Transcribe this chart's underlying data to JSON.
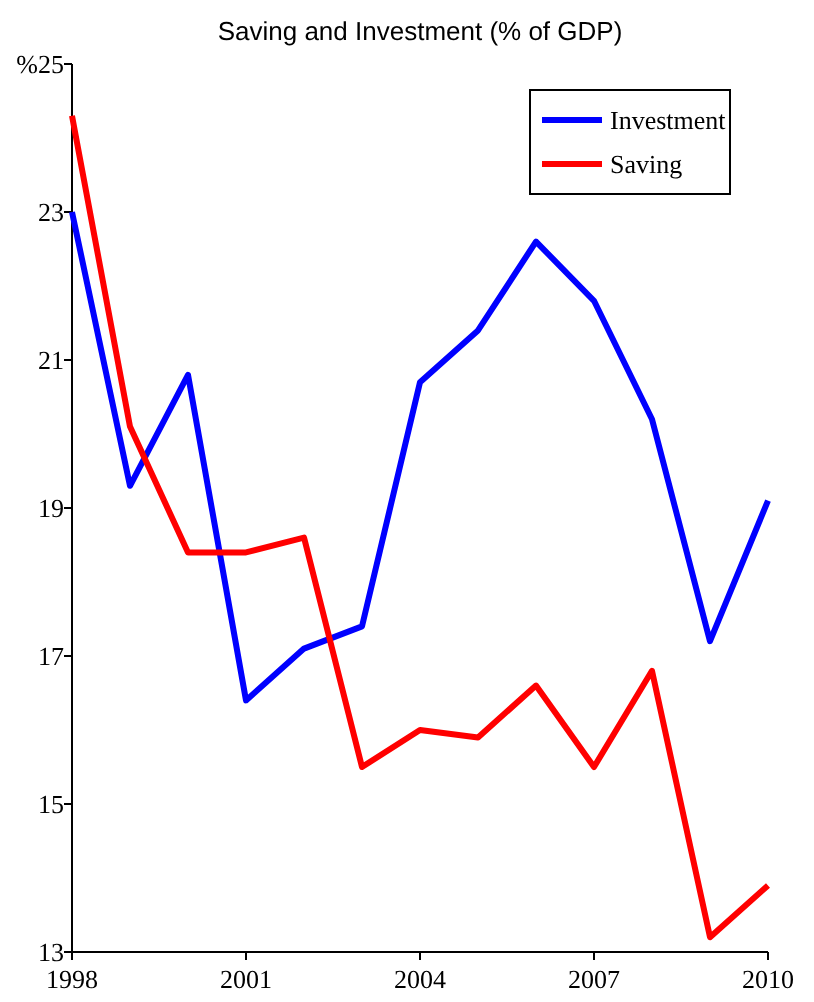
{
  "chart_data": {
    "type": "line",
    "title": "Saving and Investment (% of GDP)",
    "x": [
      1998,
      1999,
      2000,
      2001,
      2002,
      2003,
      2004,
      2005,
      2006,
      2007,
      2008,
      2009,
      2010
    ],
    "series": [
      {
        "name": "Investment",
        "color": "#0000ff",
        "values": [
          23.0,
          19.3,
          20.8,
          16.4,
          17.1,
          17.4,
          20.7,
          21.4,
          22.6,
          21.8,
          20.2,
          17.2,
          19.1
        ]
      },
      {
        "name": "Saving",
        "color": "#ff0000",
        "values": [
          24.3,
          20.1,
          18.4,
          18.4,
          18.6,
          15.5,
          16.0,
          15.9,
          16.6,
          15.5,
          16.8,
          13.2,
          13.9
        ]
      }
    ],
    "xlim": [
      1998,
      2010
    ],
    "xticks": [
      1998,
      2001,
      2004,
      2007,
      2010
    ],
    "ylim": [
      13,
      25
    ],
    "yticks": [
      13,
      15,
      17,
      19,
      21,
      23,
      {
        "value": 25,
        "label": "%25"
      }
    ],
    "grid": false,
    "legend": "top right",
    "marker": "none",
    "line_style": "solid"
  }
}
